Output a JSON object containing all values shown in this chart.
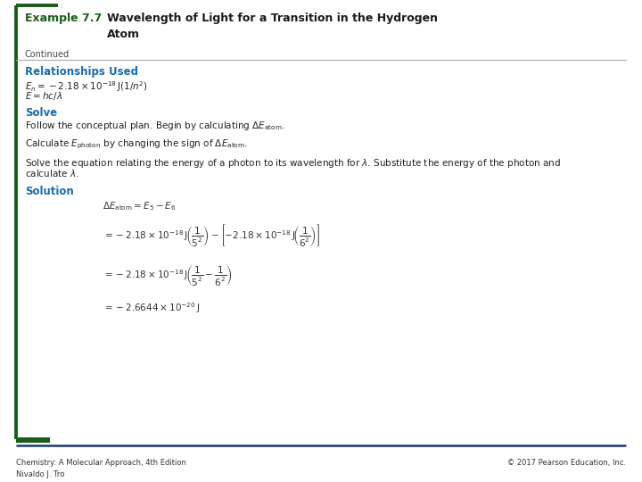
{
  "bg_color": "#ffffff",
  "border_left_color": "#1a5c1a",
  "border_bottom_color": "#1a3a6b",
  "title_label": "Example 7.7",
  "title_label_color": "#1a5c1a",
  "title_text": "Wavelength of Light for a Transition in the Hydrogen\nAtom",
  "title_text_color": "#1a1a1a",
  "continued_text": "Continued",
  "section1_heading": "Relationships Used",
  "section_color": "#1a6aaa",
  "eq1": "$E_n = -2.18 \\times 10^{-18}\\,\\mathrm{J}(1/n^2)$",
  "eq2": "$E = hc/\\lambda$",
  "section2_heading": "Solve",
  "solve_line1": "Follow the conceptual plan. Begin by calculating $\\Delta E_{\\mathrm{atom}}$.",
  "solve_line2": "Calculate $E_{\\mathrm{photon}}$ by changing the sign of $\\Delta E_{\\mathrm{atom}}$.",
  "solve_line3a": "Solve the equation relating the energy of a photon to its wavelength for $\\lambda$. Substitute the energy of the photon and",
  "solve_line3b": "calculate $\\lambda$.",
  "section3_heading": "Solution",
  "sol_eq1": "$\\Delta E_{\\mathrm{atom}} = E_5 - E_6$",
  "sol_eq2": "$= -2.18 \\times 10^{-18}\\,\\mathrm{J}\\!\\left(\\dfrac{1}{5^2}\\right) - \\left[-2.18 \\times 10^{-18}\\,\\mathrm{J}\\!\\left(\\dfrac{1}{6^2}\\right)\\right]$",
  "sol_eq3": "$= -2.18 \\times 10^{-18}\\,\\mathrm{J}\\!\\left(\\dfrac{1}{5^2} - \\dfrac{1}{6^2}\\right)$",
  "sol_eq4": "$= -2.6644 \\times 10^{-20}\\,\\mathrm{J}$",
  "footer_left": "Chemistry: A Molecular Approach, 4th Edition\nNivaldo J. Tro",
  "footer_right": "© 2017 Pearson Education, Inc.",
  "footer_color": "#333333",
  "divider_color": "#aaaaaa"
}
